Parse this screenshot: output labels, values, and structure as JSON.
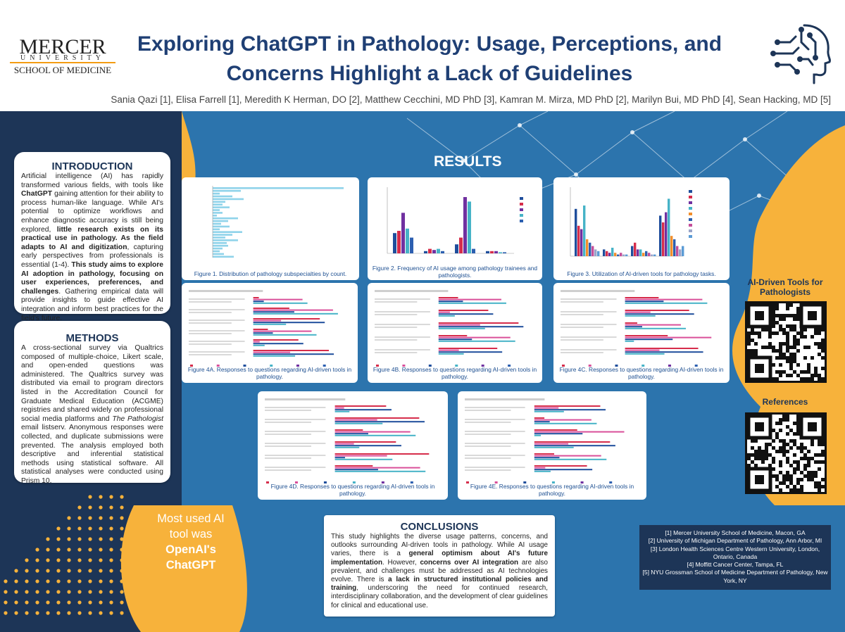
{
  "header": {
    "logo_main": "MERCER",
    "logo_univ": "UNIVERSITY",
    "logo_school": "SCHOOL OF MEDICINE",
    "title_line1": "Exploring ChatGPT in Pathology: Usage, Perceptions, and",
    "title_line2": "Concerns Highlight a Lack of Guidelines",
    "authors": "Sania Qazi [1], Elisa Farrell [1], Meredith K Herman, DO [2], Matthew Cecchini, MD PhD [3], Kamran M. Mirza, MD PhD [2], Marilyn Bui, MD PhD [4], Sean Hacking, MD [5]",
    "brain_icon": "ai-brain-circuit-icon"
  },
  "introduction": {
    "heading": "INTRODUCTION",
    "t1": "Artificial intelligence (AI) has rapidly transformed various fields, with tools like ",
    "b1": "ChatGPT",
    "t2": " gaining attention for their ability to process human-like language. While AI's potential to optimize workflows and enhance diagnostic accuracy is still being explored, ",
    "b2": "little research exists on its practical use in pathology. As the field adapts to AI and digitization",
    "t3": ", capturing early perspectives from professionals is essential (1-4). ",
    "b3": "This study aims to explore AI adoption in pathology, focusing on user experiences, preferences, and challenges",
    "t4": ". Gathering empirical data will provide insights to guide effective AI integration and inform best practices for the field's future."
  },
  "methods": {
    "heading": "METHODS",
    "t1": "A cross-sectional survey via Qualtrics composed of multiple-choice, Likert scale, and open-ended questions was administered. The Qualtrics survey was distributed via email to program directors listed in the Accreditation Council for Graduate Medical Education (ACGME) registries and shared widely on professional social media platforms and ",
    "i1": "The Pathologist",
    "t2": " email listserv. Anonymous responses were collected, and duplicate submissions were prevented. The analysis employed both descriptive and inferential statistical methods using statistical software. All statistical analyses were conducted using Prism 10."
  },
  "results": {
    "heading": "RESULTS",
    "figures": [
      {
        "caption": "Figure 1. Distribution of pathology subspecialties by count."
      },
      {
        "caption": "Figure 2. Frequency of AI usage among pathology trainees and pathologists."
      },
      {
        "caption": "Figure 3. Utilization of AI-driven tools for pathology tasks."
      },
      {
        "caption": "Figure 4A. Responses to questions regarding AI-driven tools in pathology."
      },
      {
        "caption": "Figure 4B. Responses to questions regarding AI-driven tools in pathology."
      },
      {
        "caption": "Figure 4C. Responses to questions regarding AI-driven tools in pathology."
      },
      {
        "caption": "Figure 4D. Responses to questions regarding AI-driven tools in pathology."
      },
      {
        "caption": "Figure 4E. Responses to questions regarding AI-driven tools in pathology."
      }
    ]
  },
  "callout": {
    "line1": "Most used AI tool was",
    "line2": "OpenAI's ChatGPT"
  },
  "conclusions": {
    "heading": "CONCLUSIONS",
    "t1": "This study highlights the diverse usage patterns, concerns, and outlooks surrounding AI-driven tools in pathology. While AI usage varies, there is a ",
    "b1": "general optimism about AI's future implementation",
    "t2": ". However, ",
    "b2": "concerns over AI integration",
    "t3": " are also prevalent, and challenges must be addressed as AI technologies evolve. There is ",
    "b3": "a lack in structured institutional policies and training",
    "t4": ", underscoring the need for continued research, interdisciplinary collaboration, and the development of clear guidelines for clinical and educational use."
  },
  "qr": {
    "label1": "AI-Driven Tools for Pathologists",
    "label2": "References"
  },
  "affiliations": [
    "[1] Mercer University School of Medicine, Macon, GA",
    "[2] University of Michigan Department of Pathology, Ann Arbor, MI",
    "[3] London Health Sciences Centre Western University, London, Ontario, Canada",
    "[4] Moffitt Cancer Center, Tampa, FL",
    "[5] NYU Grossman School of Medicine Department of Pathology, New York, NY"
  ],
  "colors": {
    "navy": "#1d3557",
    "blue": "#2c74ad",
    "orange": "#f7b23b",
    "title": "#1f3f74"
  }
}
